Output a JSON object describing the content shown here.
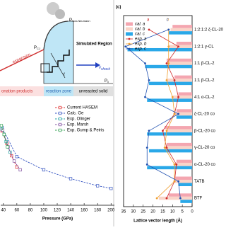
{
  "diagram": {
    "p_von_neumann": {
      "symbol": "P",
      "subscript": "Von-Neumann"
    },
    "p_cj": {
      "symbol": "P",
      "subscript": "CJ"
    },
    "simulated_region": "Simulated Region",
    "expansion": "expansion",
    "t": "t",
    "v_shock": {
      "symbol": "v",
      "subscript": "shock"
    },
    "p_0": {
      "symbol": "P",
      "subscript": "0"
    },
    "zones": [
      "onation products",
      "reaction zone",
      "unreacted solid"
    ]
  },
  "chart_data": [
    {
      "type": "line",
      "xlabel": "Pressure (GPa)",
      "xlim": [
        36,
        205
      ],
      "xticks": [
        40,
        60,
        80,
        100,
        120,
        140,
        160,
        180,
        200
      ],
      "ylim": [
        0,
        1
      ],
      "series": [
        {
          "name": "Current HASEM",
          "color": "#e03030",
          "x": [
            38,
            45,
            52,
            60
          ],
          "values": [
            0.84,
            0.7,
            0.56,
            0.43
          ]
        },
        {
          "name": "Calc. Ge",
          "color": "#3050c0",
          "x": [
            38,
            60,
            100,
            140,
            180,
            200
          ],
          "values": [
            0.88,
            0.55,
            0.4,
            0.3,
            0.22,
            0.19
          ]
        },
        {
          "name": "Exp. Olinger",
          "color": "#20a0a0",
          "x": [
            38,
            44,
            50
          ],
          "values": [
            0.86,
            0.72,
            0.6
          ]
        },
        {
          "name": "Exp. Marsh",
          "color": "#8050a0",
          "x": [
            39,
            47,
            56,
            65
          ],
          "values": [
            0.85,
            0.66,
            0.5,
            0.4
          ]
        },
        {
          "name": "Exp. Gump & Peiris",
          "color": "#30a050",
          "x": [
            37,
            41,
            46
          ],
          "values": [
            0.9,
            0.8,
            0.66
          ]
        }
      ]
    },
    {
      "type": "hbar",
      "panel": "(c)",
      "xlabel": "Lattice vector length (Å)",
      "xlim": [
        35,
        0
      ],
      "xticks": [
        35,
        30,
        25,
        20,
        15,
        10,
        5,
        0
      ],
      "categories": [
        "1:2:1:2 ζ-CL-20",
        "1:2:1 γ-CL",
        "1:1 β-CL-2",
        "1:1 β-CL-2",
        "4:1 α-CL-2",
        "ζ-CL-20 co",
        "β-CL-20 co",
        "γ-CL-20 co",
        "α-CL-20 co",
        "TATB",
        "BTF"
      ],
      "series": [
        {
          "name": "cal. a",
          "kind": "bar",
          "color": "#f4a6b0",
          "values": [
            10,
            8,
            13,
            9,
            7,
            8,
            14,
            13,
            8,
            9,
            12
          ]
        },
        {
          "name": "cal. b",
          "kind": "bar",
          "color": "#f9d4c8",
          "values": [
            11,
            12,
            12,
            13,
            10,
            9,
            13,
            14,
            9,
            9,
            17
          ]
        },
        {
          "name": "cal. c",
          "kind": "bar",
          "color": "#2aa8e8",
          "values": [
            12,
            33,
            24,
            22,
            23,
            8,
            23,
            22,
            23,
            7,
            6
          ]
        },
        {
          "name": "exp. a",
          "kind": "line",
          "tag": "a",
          "color": "#d02828",
          "values": [
            22,
            7,
            13,
            9,
            7,
            9,
            15,
            13,
            8,
            9,
            13
          ]
        },
        {
          "name": "exp. b",
          "kind": "line",
          "tag": "b",
          "color": "#f0a030",
          "values": [
            12,
            12,
            12,
            13,
            10,
            9,
            13,
            14,
            9,
            9,
            18
          ]
        },
        {
          "name": "exp. c",
          "kind": "line",
          "tag": "c",
          "color": "#2050b0",
          "values": [
            12,
            34,
            24,
            22,
            24,
            7,
            22,
            23,
            23,
            7,
            6
          ]
        }
      ]
    }
  ]
}
